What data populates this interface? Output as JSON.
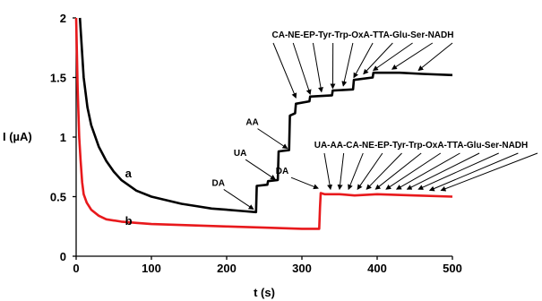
{
  "chart_data": {
    "type": "line",
    "xlabel": "t (s)",
    "ylabel": "I (µA)",
    "xlim": [
      0,
      500
    ],
    "ylim": [
      0,
      2
    ],
    "x_ticks": [
      "0",
      "100",
      "200",
      "300",
      "400",
      "500"
    ],
    "y_ticks": [
      "0",
      "0.5",
      "1",
      "1.5",
      "2"
    ],
    "grid": false,
    "legend": "none",
    "series": [
      {
        "name": "a",
        "color": "#000000",
        "x": [
          5,
          10,
          15,
          20,
          30,
          40,
          50,
          60,
          80,
          100,
          120,
          140,
          160,
          180,
          200,
          220,
          239,
          240,
          254,
          255,
          268,
          269,
          283,
          284,
          291,
          292,
          310,
          311,
          340,
          341,
          368,
          369,
          394,
          395,
          430,
          460,
          500
        ],
        "y": [
          2.0,
          1.5,
          1.25,
          1.1,
          0.92,
          0.8,
          0.71,
          0.64,
          0.55,
          0.5,
          0.47,
          0.44,
          0.42,
          0.4,
          0.39,
          0.38,
          0.37,
          0.59,
          0.6,
          0.63,
          0.64,
          0.88,
          0.89,
          1.18,
          1.2,
          1.28,
          1.3,
          1.34,
          1.35,
          1.39,
          1.4,
          1.48,
          1.5,
          1.54,
          1.54,
          1.53,
          1.52
        ]
      },
      {
        "name": "b",
        "color": "#e8191c",
        "x": [
          0,
          2,
          4,
          6,
          8,
          10,
          14,
          20,
          30,
          40,
          60,
          80,
          100,
          150,
          200,
          250,
          300,
          323,
          324,
          325,
          330,
          340,
          350,
          370,
          400,
          450,
          500
        ],
        "y": [
          2.0,
          1.4,
          1.0,
          0.8,
          0.62,
          0.52,
          0.45,
          0.39,
          0.34,
          0.31,
          0.29,
          0.28,
          0.27,
          0.26,
          0.25,
          0.24,
          0.23,
          0.23,
          0.41,
          0.53,
          0.52,
          0.52,
          0.52,
          0.51,
          0.52,
          0.51,
          0.5
        ]
      }
    ],
    "curve_labels": [
      {
        "text": "a",
        "x": 65,
        "y": 0.7
      },
      {
        "text": "b",
        "x": 65,
        "y": 0.3
      }
    ],
    "annotations_a": [
      {
        "text": "DA",
        "x": 239
      },
      {
        "text": "UA",
        "x": 268
      },
      {
        "text": "AA",
        "x": 284
      }
    ],
    "header_a": {
      "text": "CA-NE-EP-Tyr-Trp-OxA-TTA-Glu-Ser-NADH",
      "targets": [
        {
          "x": 292,
          "y": 1.3
        },
        {
          "x": 311,
          "y": 1.33
        },
        {
          "x": 326,
          "y": 1.35
        },
        {
          "x": 341,
          "y": 1.38
        },
        {
          "x": 355,
          "y": 1.4
        },
        {
          "x": 369,
          "y": 1.47
        },
        {
          "x": 382,
          "y": 1.5
        },
        {
          "x": 395,
          "y": 1.53
        },
        {
          "x": 420,
          "y": 1.54
        },
        {
          "x": 455,
          "y": 1.53
        }
      ]
    },
    "annotation_b": {
      "text": "DA",
      "x": 325
    },
    "header_b": {
      "text": "UA-AA-CA-NE-EP-Tyr-Trp-OxA-TTA-Glu-Ser-NADH",
      "targets": [
        {
          "x": 338,
          "y": 0.54
        },
        {
          "x": 350,
          "y": 0.54
        },
        {
          "x": 362,
          "y": 0.54
        },
        {
          "x": 374,
          "y": 0.54
        },
        {
          "x": 386,
          "y": 0.54
        },
        {
          "x": 398,
          "y": 0.54
        },
        {
          "x": 412,
          "y": 0.54
        },
        {
          "x": 426,
          "y": 0.54
        },
        {
          "x": 440,
          "y": 0.54
        },
        {
          "x": 455,
          "y": 0.54
        },
        {
          "x": 470,
          "y": 0.53
        },
        {
          "x": 485,
          "y": 0.53
        }
      ]
    }
  }
}
